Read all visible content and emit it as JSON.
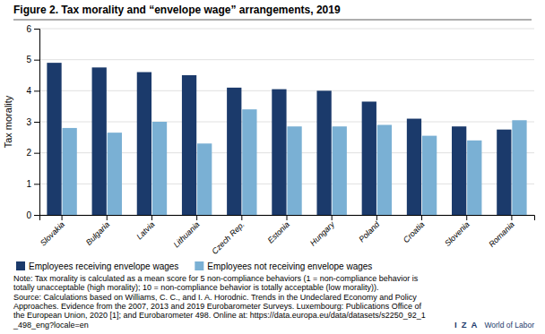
{
  "chart_data": {
    "type": "bar",
    "title": "Figure 2. Tax morality and “envelope wage” arrangements, 2019",
    "y_label": "Tax morality",
    "categories": [
      "Slovakia",
      "Bulgaria",
      "Latvia",
      "Lithuania",
      "Czech Rep.",
      "Estonia",
      "Hungary",
      "Poland",
      "Croatia",
      "Slovenia",
      "Romania"
    ],
    "series": [
      {
        "name": "Employees receiving envelope wages",
        "color": "#1b3a6b",
        "values": [
          4.9,
          4.75,
          4.6,
          4.5,
          4.1,
          4.05,
          4.0,
          3.65,
          3.1,
          2.85,
          2.75
        ]
      },
      {
        "name": "Employees not receiving envelope wages",
        "color": "#7ab0d4",
        "values": [
          2.8,
          2.65,
          3.0,
          2.3,
          3.4,
          2.85,
          2.85,
          2.9,
          2.55,
          2.4,
          3.05
        ]
      }
    ],
    "ylim": [
      0,
      6
    ],
    "yticks": [
      0,
      1,
      2,
      3,
      4,
      5,
      6
    ],
    "grid": true,
    "legend": "lower left",
    "annotations": [
      "Note: Tax morality is calculated as a mean score for 5 non-compliance behaviors (1 = non-compliance behavior is",
      "totally unacceptable (high morality); 10 = non-compliance behavior is totally acceptable (low morality)).",
      "Source: Calculations based on Williams, C. C., and I. A. Horodnic. Trends in the Undeclared Economy and Policy",
      "Approaches. Evidence from the 2007, 2013 and 2019 Eurobarometer Surveys. Luxembourg: Publications Office of",
      "the European Union, 2020 [1]; and Eurobarometer 498. Online at: https://data.europa.eu/data/datasets/s2250_92_1",
      "_498_eng?locale=en"
    ],
    "logo": [
      "I  Z  A",
      "World of Labor"
    ]
  }
}
